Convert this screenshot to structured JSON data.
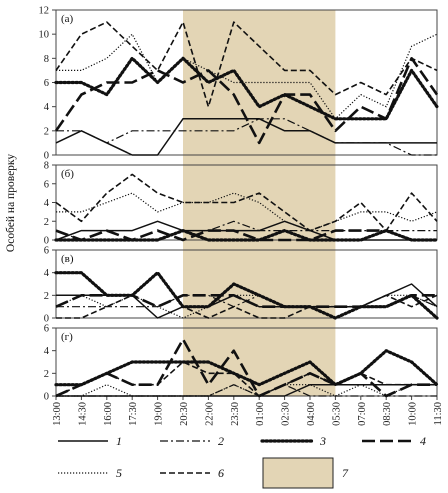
{
  "chart_data": {
    "type": "line",
    "ylabel": "Особей на проверку",
    "x_labels": [
      "13:00",
      "14:30",
      "16:00",
      "17:30",
      "19:00",
      "20:30",
      "22:00",
      "23:30",
      "01:00",
      "02:30",
      "04:00",
      "05:30",
      "07:00",
      "08:30",
      "10:00",
      "11:30"
    ],
    "highlight": {
      "from": "20:30",
      "to": "05:30",
      "color": "#e3d5b5",
      "legend": "7"
    },
    "series_styles": [
      {
        "name": "1",
        "dash": "",
        "width": 1.5
      },
      {
        "name": "2",
        "dash": "8 3 2 3",
        "width": 1.2
      },
      {
        "name": "3",
        "dash": "1.5 2.5",
        "width": 3.2,
        "cap": "round"
      },
      {
        "name": "4",
        "dash": "13 5",
        "width": 2.6
      },
      {
        "name": "5",
        "dash": "1.2 1.8",
        "width": 1.2
      },
      {
        "name": "6",
        "dash": "6 3",
        "width": 1.6
      }
    ],
    "panels": [
      {
        "label": "(а)",
        "ylim": [
          0,
          12
        ],
        "yticks": [
          0,
          2,
          4,
          6,
          8,
          10,
          12
        ],
        "series": [
          {
            "name": "1",
            "x": [
              0,
              1,
              2,
              3,
              4,
              5,
              6,
              7,
              8,
              9,
              10,
              11,
              12,
              13,
              14,
              15
            ],
            "values": [
              1,
              2,
              1,
              0,
              0,
              3,
              3,
              3,
              3,
              2,
              2,
              1,
              1,
              1,
              1,
              1
            ]
          },
          {
            "name": "2",
            "x": [
              0,
              1,
              2,
              3,
              4,
              5,
              6,
              7,
              8,
              9,
              10,
              11,
              12,
              13,
              14,
              15
            ],
            "values": [
              2,
              2,
              1,
              2,
              2,
              2,
              2,
              2,
              3,
              3,
              2,
              1,
              1,
              1,
              0,
              0
            ]
          },
          {
            "name": "3",
            "x": [
              0,
              1,
              2,
              3,
              4,
              5,
              6,
              7,
              8,
              9,
              10,
              11,
              12,
              13,
              14,
              15
            ],
            "values": [
              6,
              6,
              5,
              8,
              6,
              8,
              6,
              7,
              4,
              5,
              4,
              3,
              3,
              3,
              7,
              4
            ]
          },
          {
            "name": "4",
            "x": [
              0,
              1,
              2,
              3,
              4,
              5,
              6,
              7,
              8,
              9,
              10,
              11,
              12,
              13,
              14,
              15
            ],
            "values": [
              2,
              5,
              6,
              6,
              7,
              6,
              7,
              5,
              1,
              5,
              5,
              2,
              4,
              3,
              8,
              5
            ]
          },
          {
            "name": "5",
            "x": [
              0,
              1,
              2,
              3,
              4,
              5,
              6,
              7,
              8,
              9,
              10,
              11,
              12,
              13,
              14,
              15
            ],
            "values": [
              7,
              7,
              8,
              10,
              6,
              8,
              7,
              6,
              6,
              6,
              6,
              3,
              5,
              4,
              9,
              10
            ]
          },
          {
            "name": "6",
            "x": [
              0,
              1,
              2,
              3,
              4,
              5,
              6,
              7,
              8,
              9,
              10,
              11,
              12,
              13,
              14,
              15
            ],
            "values": [
              7,
              10,
              11,
              9,
              7,
              11,
              4,
              11,
              9,
              7,
              7,
              5,
              6,
              5,
              8,
              7
            ]
          }
        ]
      },
      {
        "label": "(б)",
        "ylim": [
          0,
          8
        ],
        "yticks": [
          0,
          2,
          4,
          6,
          8
        ],
        "series": [
          {
            "name": "1",
            "x": [
              0,
              1,
              2,
              3,
              4,
              5,
              6,
              7,
              8,
              9,
              10,
              11,
              12,
              13,
              14,
              15
            ],
            "values": [
              0,
              1,
              1,
              1,
              2,
              1,
              1,
              1,
              1,
              2,
              1,
              0,
              0,
              0,
              0,
              0
            ]
          },
          {
            "name": "2",
            "x": [
              0,
              1,
              2,
              3,
              4,
              5,
              6,
              7,
              8,
              9,
              10,
              11,
              12,
              13,
              14,
              15
            ],
            "values": [
              1,
              0,
              0,
              0,
              0,
              1,
              1,
              2,
              1,
              1,
              1,
              1,
              1,
              1,
              1,
              1
            ]
          },
          {
            "name": "3",
            "x": [
              0,
              1,
              2,
              3,
              4,
              5,
              6,
              7,
              8,
              9,
              10,
              11,
              12,
              13,
              14,
              15
            ],
            "values": [
              0,
              0,
              0,
              0,
              0,
              1,
              0,
              0,
              0,
              1,
              0,
              0,
              0,
              1,
              0,
              0
            ]
          },
          {
            "name": "4",
            "x": [
              0,
              1,
              2,
              3,
              4,
              5,
              6,
              7,
              8,
              9,
              10,
              11,
              12,
              13,
              14,
              15
            ],
            "values": [
              1,
              0,
              1,
              0,
              1,
              0,
              1,
              1,
              0,
              0,
              0,
              1,
              1,
              1,
              0,
              0
            ]
          },
          {
            "name": "5",
            "x": [
              0,
              1,
              2,
              3,
              4,
              5,
              6,
              7,
              8,
              9,
              10,
              11,
              12,
              13,
              14,
              15
            ],
            "values": [
              3,
              3,
              4,
              5,
              3,
              4,
              4,
              5,
              4,
              2,
              1,
              2,
              3,
              3,
              2,
              3
            ]
          },
          {
            "name": "6",
            "x": [
              0,
              1,
              2,
              3,
              4,
              5,
              6,
              7,
              8,
              9,
              10,
              11,
              12,
              13,
              14,
              15
            ],
            "values": [
              4,
              2,
              5,
              7,
              5,
              4,
              4,
              4,
              5,
              3,
              1,
              2,
              4,
              1,
              5,
              2
            ]
          }
        ]
      },
      {
        "label": "(в)",
        "ylim": [
          0,
          6
        ],
        "yticks": [
          0,
          2,
          4,
          6
        ],
        "series": [
          {
            "name": "1",
            "x": [
              0,
              1,
              2,
              3,
              4,
              5,
              6,
              7,
              8,
              9,
              10,
              11,
              12,
              13,
              14,
              15
            ],
            "values": [
              2,
              2,
              2,
              2,
              0,
              1,
              1,
              2,
              1,
              1,
              1,
              1,
              1,
              2,
              3,
              1
            ]
          },
          {
            "name": "2",
            "x": [
              0,
              1,
              2,
              3,
              4,
              5,
              6,
              7,
              8,
              9,
              10,
              11,
              12,
              13,
              14,
              15
            ],
            "values": [
              1,
              1,
              1,
              1,
              1,
              2,
              2,
              1,
              2,
              1,
              1,
              1,
              1,
              1,
              2,
              1
            ]
          },
          {
            "name": "3",
            "x": [
              0,
              1,
              2,
              3,
              4,
              5,
              6,
              7,
              8,
              9,
              10,
              11,
              12,
              13,
              14,
              15
            ],
            "values": [
              4,
              4,
              2,
              2,
              4,
              1,
              1,
              3,
              2,
              1,
              1,
              0,
              1,
              1,
              2,
              0
            ]
          },
          {
            "name": "4",
            "x": [
              0,
              1,
              2,
              3,
              4,
              5,
              6,
              7,
              8,
              9,
              10,
              11,
              12,
              13,
              14,
              15
            ],
            "values": [
              1,
              2,
              2,
              2,
              1,
              2,
              2,
              2,
              1,
              1,
              1,
              1,
              1,
              1,
              2,
              2
            ]
          },
          {
            "name": "5",
            "x": [
              0,
              1,
              2,
              3,
              4,
              5,
              6,
              7,
              8,
              9,
              10,
              11,
              12,
              13,
              14,
              15
            ],
            "values": [
              1,
              2,
              1,
              2,
              1,
              0,
              1,
              2,
              2,
              1,
              1,
              1,
              1,
              2,
              2,
              1
            ]
          },
          {
            "name": "6",
            "x": [
              0,
              1,
              2,
              3,
              4,
              5,
              6,
              7,
              8,
              9,
              10,
              11,
              12,
              13,
              14,
              15
            ],
            "values": [
              0,
              0,
              1,
              2,
              4,
              1,
              0,
              1,
              0,
              0,
              1,
              1,
              1,
              2,
              1,
              2
            ]
          }
        ]
      },
      {
        "label": "(г)",
        "ylim": [
          0,
          6
        ],
        "yticks": [
          0,
          2,
          4,
          6
        ],
        "series": [
          {
            "name": "1",
            "x": [
              0,
              1,
              2,
              3,
              4,
              5,
              6,
              7,
              8,
              9,
              10,
              11,
              12,
              13,
              14,
              15
            ],
            "values": [
              0,
              0,
              0,
              0,
              0,
              0,
              0,
              0,
              0,
              0,
              1,
              1,
              1,
              1,
              1,
              1
            ]
          },
          {
            "name": "2",
            "x": [
              0,
              1,
              2,
              3,
              4,
              5,
              6,
              7,
              8,
              9,
              10,
              11,
              12,
              13,
              14,
              15
            ],
            "values": [
              0,
              0,
              0,
              0,
              0,
              0,
              0,
              1,
              0,
              1,
              0,
              0,
              0,
              0,
              0,
              0
            ]
          },
          {
            "name": "3",
            "x": [
              0,
              1,
              2,
              3,
              4,
              5,
              6,
              7,
              8,
              9,
              10,
              11,
              12,
              13,
              14,
              15
            ],
            "values": [
              1,
              1,
              2,
              3,
              3,
              3,
              3,
              2,
              1,
              2,
              3,
              1,
              2,
              4,
              3,
              1
            ]
          },
          {
            "name": "4",
            "x": [
              0,
              1,
              2,
              3,
              4,
              5,
              6,
              7,
              8,
              9,
              10,
              11,
              12,
              13,
              14,
              15
            ],
            "values": [
              0,
              1,
              2,
              1,
              1,
              5,
              1,
              4,
              0,
              1,
              2,
              1,
              2,
              0,
              1,
              1
            ]
          },
          {
            "name": "5",
            "x": [
              0,
              1,
              2,
              3,
              4,
              5,
              6,
              7,
              8,
              9,
              10,
              11,
              12,
              13,
              14,
              15
            ],
            "values": [
              0,
              0,
              1,
              0,
              0,
              0,
              0,
              1,
              0,
              1,
              1,
              0,
              1,
              0,
              1,
              1
            ]
          },
          {
            "name": "6",
            "x": [
              0,
              1,
              2,
              3,
              4,
              5,
              6,
              7,
              8,
              9,
              10,
              11,
              12,
              13,
              14,
              15
            ],
            "values": [
              0,
              1,
              2,
              1,
              1,
              3,
              2,
              2,
              0,
              1,
              2,
              1,
              2,
              1,
              1,
              1
            ]
          }
        ]
      }
    ],
    "legend": [
      "1",
      "2",
      "3",
      "4",
      "5",
      "6",
      "7"
    ]
  }
}
